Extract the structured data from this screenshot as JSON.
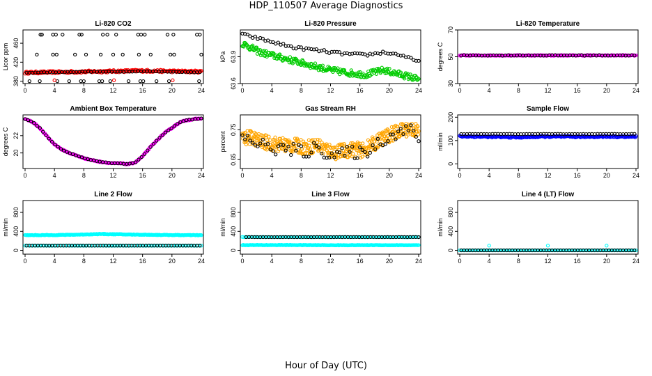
{
  "page": {
    "title": "HDP_110507  Average Diagnostics",
    "x_caption": "Hour of Day (UTC)"
  },
  "colors": {
    "black": "#000000",
    "red": "#ff0000",
    "green": "#00cc00",
    "orange": "#ffa500",
    "magenta": "#ff00ff",
    "blue": "#0000ff",
    "cyan": "#00ffff"
  },
  "chart_data": [
    {
      "type": "scatter",
      "title": "Li-820 CO2",
      "ylabel": "Licor ppm",
      "xlim": [
        0,
        24
      ],
      "xticks": [
        0,
        4,
        8,
        12,
        16,
        20,
        24
      ],
      "ylim": [
        375,
        488
      ],
      "yticks": [
        380,
        420,
        460
      ],
      "series": [
        {
          "color": "#ff0000",
          "style": "dense",
          "x0": 0.0,
          "x1": 24.0,
          "n": 230,
          "y": [
            398,
            399,
            400,
            401,
            402,
            401,
            400
          ],
          "spread": 2.5
        },
        {
          "color": "#000000",
          "style": "sparse",
          "x0": 0.2,
          "x1": 23.8,
          "n": 60,
          "y": [
            398,
            399,
            400,
            400,
            401,
            400,
            399
          ],
          "spread": 0.5
        },
        {
          "color": "#000000",
          "style": "points",
          "x": [
            2.1,
            2.3,
            3.8,
            4.2,
            5.1,
            7.4,
            7.7,
            10.6,
            11.2,
            12.4,
            15.4,
            15.8,
            16.3,
            19.4,
            20.2,
            23.4,
            23.8
          ],
          "y": [
            478,
            478,
            478,
            478,
            478,
            478,
            478,
            478,
            478,
            478,
            478,
            478,
            478,
            478,
            478,
            478,
            478
          ]
        },
        {
          "color": "#000000",
          "style": "points",
          "x": [
            1.6,
            3.8,
            4.3,
            6.8,
            8.3,
            10.3,
            12.0,
            13.3,
            15.5,
            17.1,
            19.8,
            20.3,
            24.0
          ],
          "y": [
            436,
            436,
            436,
            436,
            436,
            436,
            436,
            436,
            436,
            436,
            436,
            436,
            436
          ]
        },
        {
          "color": "#000000",
          "style": "points",
          "x": [
            0.6,
            2.0,
            4.4,
            6.0,
            7.6,
            8.0,
            10.1,
            10.5,
            11.6,
            14.1,
            15.7,
            16.1,
            17.9,
            19.6,
            23.7
          ],
          "y": [
            380,
            380,
            380,
            380,
            380,
            380,
            380,
            380,
            380,
            380,
            380,
            380,
            380,
            380,
            380
          ]
        },
        {
          "color": "#ff0000",
          "style": "points",
          "x": [
            4.0,
            12.1,
            20.1
          ],
          "y": [
            382,
            382,
            382
          ]
        }
      ]
    },
    {
      "type": "scatter",
      "title": "Li-820 Pressure",
      "ylabel": "kPa",
      "xlim": [
        0,
        24
      ],
      "xticks": [
        0,
        4,
        8,
        12,
        16,
        20,
        24
      ],
      "ylim": [
        63.6,
        64.2
      ],
      "yticks": [
        63.6,
        63.9
      ],
      "series": [
        {
          "color": "#00cc00",
          "style": "dense",
          "x0": 0.0,
          "x1": 24.0,
          "n": 260,
          "y": [
            64.05,
            63.95,
            63.9,
            63.85,
            63.8,
            63.75,
            63.72,
            63.7,
            63.75,
            63.7,
            63.65
          ],
          "spread": 0.035
        },
        {
          "color": "#000000",
          "style": "sparse",
          "x0": 0.0,
          "x1": 24.0,
          "n": 70,
          "y": [
            64.15,
            64.1,
            64.05,
            64.0,
            63.98,
            63.95,
            63.93,
            63.92,
            63.95,
            63.92,
            63.84
          ],
          "spread": 0.015
        }
      ]
    },
    {
      "type": "scatter",
      "title": "Li-820 Temperature",
      "ylabel": "degrees C",
      "xlim": [
        0,
        24
      ],
      "xticks": [
        0,
        4,
        8,
        12,
        16,
        20,
        24
      ],
      "ylim": [
        30,
        70
      ],
      "yticks": [
        30,
        50,
        70
      ],
      "series": [
        {
          "color": "#ff00ff",
          "style": "dense",
          "x0": 0.0,
          "x1": 24.0,
          "n": 200,
          "y": [
            51,
            51
          ],
          "spread": 0.3
        },
        {
          "color": "#000000",
          "style": "sparse",
          "x0": 0.2,
          "x1": 23.8,
          "n": 60,
          "y": [
            51,
            51
          ],
          "spread": 0.2
        }
      ]
    },
    {
      "type": "scatter",
      "title": "Ambient Box Temperature",
      "ylabel": "degrees C",
      "xlim": [
        0,
        24
      ],
      "xticks": [
        0,
        4,
        8,
        12,
        16,
        20,
        24
      ],
      "ylim": [
        18.2,
        24.4
      ],
      "yticks": [
        20,
        22
      ],
      "series": [
        {
          "color": "#ff00ff",
          "style": "dense",
          "x0": 0.0,
          "x1": 24.0,
          "n": 240,
          "y": [
            23.9,
            23.6,
            22.9,
            21.9,
            21.0,
            20.4,
            20.0,
            19.7,
            19.4,
            19.2,
            19.0,
            18.9,
            18.8,
            18.8,
            18.7,
            18.9,
            19.6,
            20.6,
            21.5,
            22.3,
            22.9,
            23.5,
            23.8,
            23.9,
            24.0
          ],
          "spread": 0.06
        },
        {
          "color": "#000000",
          "style": "sparse",
          "x0": 0.0,
          "x1": 24.0,
          "n": 60,
          "y": [
            23.9,
            23.6,
            22.9,
            21.9,
            21.0,
            20.4,
            20.0,
            19.7,
            19.4,
            19.2,
            19.0,
            18.9,
            18.8,
            18.8,
            18.7,
            18.9,
            19.6,
            20.6,
            21.5,
            22.3,
            22.9,
            23.5,
            23.8,
            23.9,
            24.0
          ],
          "spread": 0.02
        }
      ]
    },
    {
      "type": "scatter",
      "title": "Gas Stream RH",
      "ylabel": "percent",
      "xlim": [
        0,
        24
      ],
      "xticks": [
        0,
        4,
        8,
        12,
        16,
        20,
        24
      ],
      "ylim": [
        0.62,
        0.8
      ],
      "yticks": [
        0.65,
        0.75
      ],
      "series": [
        {
          "color": "#ffa500",
          "style": "dense",
          "x0": 0.0,
          "x1": 24.0,
          "n": 420,
          "y": [
            0.72,
            0.725,
            0.71,
            0.705,
            0.7,
            0.7,
            0.695,
            0.69,
            0.7,
            0.685,
            0.675,
            0.68,
            0.685,
            0.68,
            0.7,
            0.72,
            0.735,
            0.745,
            0.755,
            0.745
          ],
          "spread": 0.025
        },
        {
          "color": "#000000",
          "style": "sparse",
          "x0": 0.0,
          "x1": 24.0,
          "n": 70,
          "y": [
            0.72,
            0.715,
            0.7,
            0.69,
            0.685,
            0.685,
            0.68,
            0.675,
            0.69,
            0.675,
            0.665,
            0.67,
            0.675,
            0.67,
            0.69,
            0.715,
            0.73,
            0.745,
            0.75,
            0.725
          ],
          "spread": 0.022
        }
      ]
    },
    {
      "type": "scatter",
      "title": "Sample Flow",
      "ylabel": "ml/min",
      "xlim": [
        0,
        24
      ],
      "xticks": [
        0,
        4,
        8,
        12,
        16,
        20,
        24
      ],
      "ylim": [
        -20,
        210
      ],
      "yticks": [
        0,
        100,
        200
      ],
      "series": [
        {
          "color": "#0000ff",
          "style": "dense",
          "x0": 0.0,
          "x1": 24.0,
          "n": 220,
          "y": [
            118,
            116,
            114,
            117,
            116,
            117,
            116
          ],
          "spread": 3
        },
        {
          "color": "#000000",
          "style": "sparse",
          "x0": 0.2,
          "x1": 23.8,
          "n": 62,
          "y": [
            128,
            128,
            128
          ],
          "spread": 0.5
        }
      ]
    },
    {
      "type": "scatter",
      "title": "Line 2 Flow",
      "ylabel": "ml/min",
      "xlim": [
        0,
        24
      ],
      "xticks": [
        0,
        4,
        8,
        12,
        16,
        20,
        24
      ],
      "ylim": [
        -80,
        1050
      ],
      "yticks": [
        0,
        400,
        800
      ],
      "series": [
        {
          "color": "#00ffff",
          "style": "dense",
          "x0": 0.0,
          "x1": 24.0,
          "n": 220,
          "y": [
            320,
            322,
            330,
            345,
            335,
            328,
            322,
            320
          ],
          "spread": 6
        },
        {
          "color": "#00ffff",
          "style": "dense",
          "x0": 0.0,
          "x1": 24.0,
          "n": 120,
          "y": [
            100,
            100
          ],
          "spread": 3
        },
        {
          "color": "#000000",
          "style": "sparse",
          "x0": 0.2,
          "x1": 23.8,
          "n": 62,
          "y": [
            100,
            100
          ],
          "spread": 1
        }
      ]
    },
    {
      "type": "scatter",
      "title": "Line 3 Flow",
      "ylabel": "ml/min",
      "xlim": [
        0,
        24
      ],
      "xticks": [
        0,
        4,
        8,
        12,
        16,
        20,
        24
      ],
      "ylim": [
        -80,
        1050
      ],
      "yticks": [
        0,
        400,
        800
      ],
      "series": [
        {
          "color": "#00ffff",
          "style": "dense",
          "x0": 0.0,
          "x1": 24.0,
          "n": 220,
          "y": [
            110,
            112,
            108,
            110,
            108
          ],
          "spread": 5
        },
        {
          "color": "#00ffff",
          "style": "dense",
          "x0": 0.0,
          "x1": 24.0,
          "n": 100,
          "y": [
            280,
            280
          ],
          "spread": 3
        },
        {
          "color": "#000000",
          "style": "sparse",
          "x0": 0.5,
          "x1": 24.0,
          "n": 62,
          "y": [
            280,
            280
          ],
          "spread": 1
        }
      ]
    },
    {
      "type": "scatter",
      "title": "Line 4 (LT) Flow",
      "ylabel": "ml/min",
      "xlim": [
        0,
        24
      ],
      "xticks": [
        0,
        4,
        8,
        12,
        16,
        20,
        24
      ],
      "ylim": [
        -80,
        1050
      ],
      "yticks": [
        0,
        400,
        800
      ],
      "series": [
        {
          "color": "#00ffff",
          "style": "dense",
          "x0": 0.0,
          "x1": 24.0,
          "n": 100,
          "y": [
            0,
            0
          ],
          "spread": 0
        },
        {
          "color": "#000000",
          "style": "sparse",
          "x0": 0.2,
          "x1": 23.8,
          "n": 62,
          "y": [
            0,
            0
          ],
          "spread": 0
        },
        {
          "color": "#00ffff",
          "style": "points",
          "x": [
            4.0,
            12.0,
            20.0
          ],
          "y": [
            100,
            100,
            100
          ]
        }
      ]
    }
  ]
}
